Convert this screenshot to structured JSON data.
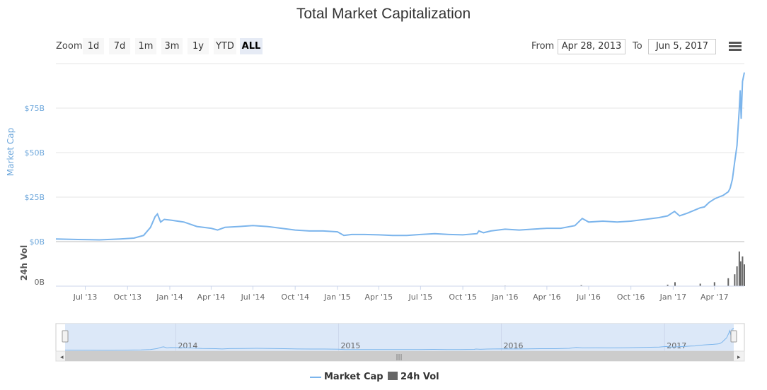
{
  "title": "Total Market Capitalization",
  "toolbar": {
    "zoom_label": "Zoom",
    "buttons": [
      "1d",
      "7d",
      "1m",
      "3m",
      "1y",
      "YTD",
      "ALL"
    ],
    "selected": "ALL",
    "from_label": "From",
    "from_value": "Apr 28, 2013",
    "to_label": "To",
    "to_value": "Jun 5, 2017"
  },
  "colors": {
    "market_cap": "#7cb5ec",
    "volume": "#666666",
    "navigator_fill": "#dce8f8"
  },
  "chart_data": {
    "type": "line",
    "ylabel": "Market Cap",
    "vol_label": "24h Vol",
    "y_ticks": [
      "$0B",
      "$25B",
      "$50B",
      "$75B"
    ],
    "ylim": [
      0,
      100
    ],
    "vol_ticks": [
      "0B"
    ],
    "x_ticks": [
      "Jul '13",
      "Oct '13",
      "Jan '14",
      "Apr '14",
      "Jul '14",
      "Oct '14",
      "Jan '15",
      "Apr '15",
      "Jul '15",
      "Oct '15",
      "Jan '16",
      "Apr '16",
      "Jul '16",
      "Oct '16",
      "Jan '17",
      "Apr '17"
    ],
    "navigator_ticks": [
      "2014",
      "2015",
      "2016",
      "2017"
    ],
    "series": [
      {
        "name": "Market Cap",
        "unit": "billion USD",
        "x": [
          "2013-04-28",
          "2013-06-15",
          "2013-08-01",
          "2013-09-15",
          "2013-10-15",
          "2013-11-05",
          "2013-11-20",
          "2013-11-30",
          "2013-12-05",
          "2013-12-12",
          "2013-12-20",
          "2014-01-05",
          "2014-02-01",
          "2014-03-01",
          "2014-04-01",
          "2014-04-15",
          "2014-05-01",
          "2014-06-01",
          "2014-07-01",
          "2014-08-01",
          "2014-09-01",
          "2014-10-01",
          "2014-11-01",
          "2014-12-01",
          "2015-01-01",
          "2015-01-15",
          "2015-02-01",
          "2015-03-01",
          "2015-04-01",
          "2015-05-01",
          "2015-06-01",
          "2015-07-01",
          "2015-08-01",
          "2015-09-01",
          "2015-10-01",
          "2015-11-01",
          "2015-11-05",
          "2015-11-15",
          "2015-12-01",
          "2016-01-01",
          "2016-02-01",
          "2016-03-01",
          "2016-04-01",
          "2016-05-01",
          "2016-06-01",
          "2016-06-17",
          "2016-07-01",
          "2016-08-01",
          "2016-09-01",
          "2016-10-01",
          "2016-11-01",
          "2016-12-01",
          "2016-12-20",
          "2017-01-04",
          "2017-01-15",
          "2017-02-01",
          "2017-02-20",
          "2017-03-01",
          "2017-03-10",
          "2017-03-20",
          "2017-04-01",
          "2017-04-10",
          "2017-04-20",
          "2017-05-01",
          "2017-05-05",
          "2017-05-10",
          "2017-05-15",
          "2017-05-20",
          "2017-05-25",
          "2017-05-27",
          "2017-05-29",
          "2017-06-01",
          "2017-06-05"
        ],
        "values": [
          1.5,
          1.2,
          1.0,
          1.5,
          2.0,
          3.5,
          8.0,
          14.0,
          15.5,
          11.0,
          12.5,
          12.0,
          11.0,
          8.5,
          7.5,
          6.5,
          8.0,
          8.5,
          9.0,
          8.5,
          7.5,
          6.5,
          6.0,
          6.0,
          5.5,
          3.5,
          4.0,
          4.0,
          3.8,
          3.5,
          3.5,
          4.0,
          4.5,
          4.0,
          3.8,
          4.5,
          6.0,
          5.0,
          6.0,
          7.0,
          6.5,
          7.0,
          7.5,
          7.5,
          9.0,
          13.0,
          11.0,
          11.5,
          11.0,
          11.5,
          12.5,
          13.5,
          14.5,
          17.0,
          14.5,
          16.0,
          18.0,
          19.0,
          19.5,
          22.0,
          24.0,
          25.0,
          26.0,
          28.0,
          30.0,
          35.0,
          45.0,
          54.0,
          75.0,
          85.0,
          69.0,
          90.0,
          95.0
        ]
      },
      {
        "name": "24h Vol",
        "unit": "billion USD",
        "x": [
          "2013-04-28",
          "2016-01-01",
          "2016-06-15",
          "2016-12-20",
          "2017-01-05",
          "2017-03-01",
          "2017-04-01",
          "2017-05-01",
          "2017-05-15",
          "2017-05-20",
          "2017-05-25",
          "2017-05-28",
          "2017-06-01",
          "2017-06-05"
        ],
        "values": [
          0.0,
          0.05,
          0.1,
          0.15,
          0.4,
          0.25,
          0.4,
          0.8,
          1.2,
          2.0,
          3.5,
          2.5,
          3.0,
          2.2
        ]
      }
    ]
  },
  "legend": {
    "market_cap": "Market Cap",
    "volume": "24h Vol"
  }
}
